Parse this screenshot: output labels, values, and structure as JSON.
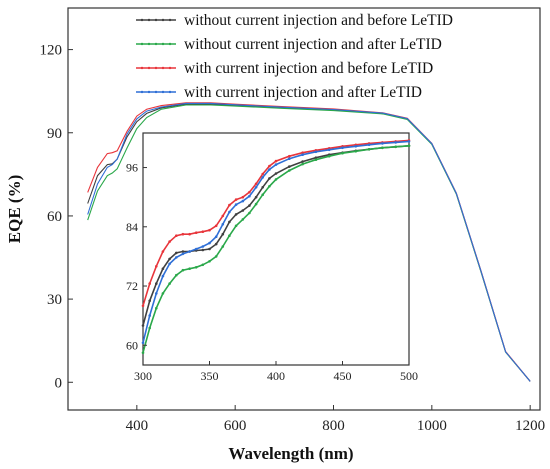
{
  "chart_data": [
    {
      "type": "line",
      "title": "",
      "xlabel": "Wavelength  (nm)",
      "ylabel": "EQE  (%)",
      "xlim": [
        260,
        1220
      ],
      "ylim": [
        -10,
        135
      ],
      "xticks": [
        400,
        600,
        800,
        1000,
        1200
      ],
      "yticks": [
        0,
        30,
        60,
        90,
        120
      ],
      "grid": false,
      "legend_position": "top-right",
      "series": [
        {
          "name": "without current injection and before LeTID",
          "color": "#404040",
          "x": [
            300,
            320,
            340,
            350,
            360,
            380,
            400,
            420,
            450,
            500,
            550,
            600,
            700,
            800,
            900,
            950,
            1000,
            1050,
            1100,
            1150,
            1200
          ],
          "y": [
            64.5,
            74.5,
            78.5,
            78.8,
            80.5,
            88.5,
            94.0,
            97.0,
            99.0,
            100.3,
            100.3,
            99.8,
            99.0,
            98.3,
            97.0,
            95.0,
            86.0,
            68.0,
            40.0,
            11.0,
            0.3
          ]
        },
        {
          "name": "without current injection and after LeTID",
          "color": "#2aa84a",
          "x": [
            300,
            320,
            340,
            350,
            360,
            380,
            400,
            420,
            450,
            500,
            550,
            600,
            700,
            800,
            900,
            950,
            1000,
            1050,
            1100,
            1150,
            1200
          ],
          "y": [
            58.5,
            69.0,
            74.5,
            75.5,
            77.0,
            84.5,
            91.5,
            95.5,
            98.5,
            100.0,
            100.0,
            99.6,
            98.8,
            98.0,
            96.8,
            94.8,
            85.8,
            67.8,
            39.8,
            10.9,
            0.3
          ]
        },
        {
          "name": "with current injection and before LeTID",
          "color": "#e8353b",
          "x": [
            300,
            320,
            340,
            350,
            360,
            380,
            400,
            420,
            450,
            500,
            550,
            600,
            700,
            800,
            900,
            950,
            1000,
            1050,
            1100,
            1150,
            1200
          ],
          "y": [
            68.5,
            77.5,
            82.5,
            82.8,
            83.5,
            90.5,
            96.0,
            98.5,
            99.8,
            100.8,
            100.8,
            100.3,
            99.4,
            98.6,
            97.2,
            95.2,
            86.2,
            68.2,
            40.2,
            11.1,
            0.3
          ]
        },
        {
          "name": "with current injection and after LeTID",
          "color": "#2f6fd6",
          "x": [
            300,
            320,
            340,
            350,
            360,
            380,
            400,
            420,
            450,
            500,
            550,
            600,
            700,
            800,
            900,
            950,
            1000,
            1050,
            1100,
            1150,
            1200
          ],
          "y": [
            60.5,
            71.5,
            77.5,
            78.5,
            80.5,
            89.5,
            95.0,
            97.8,
            99.3,
            100.6,
            100.6,
            100.1,
            99.2,
            98.4,
            97.1,
            95.1,
            86.1,
            68.1,
            40.1,
            11.0,
            0.3
          ]
        }
      ]
    },
    {
      "type": "line",
      "title": "",
      "xlabel": "",
      "ylabel": "",
      "xlim": [
        300,
        500
      ],
      "ylim": [
        56,
        103
      ],
      "xticks": [
        300,
        350,
        400,
        450,
        500
      ],
      "yticks": [
        60,
        72,
        84,
        96
      ],
      "grid": false,
      "series": [
        {
          "color": "#404040",
          "x": [
            300,
            305,
            310,
            315,
            320,
            325,
            330,
            335,
            340,
            345,
            350,
            355,
            360,
            365,
            370,
            375,
            380,
            385,
            390,
            395,
            400,
            410,
            420,
            430,
            440,
            450,
            460,
            470,
            480,
            490,
            500
          ],
          "y": [
            64.0,
            69.0,
            72.5,
            75.5,
            77.5,
            78.7,
            79.0,
            79.0,
            79.2,
            79.3,
            79.5,
            80.5,
            82.5,
            85.0,
            86.5,
            87.3,
            88.3,
            90.0,
            92.0,
            93.8,
            94.8,
            96.2,
            97.2,
            98.0,
            98.6,
            99.0,
            99.4,
            99.7,
            100.0,
            100.2,
            100.4
          ]
        },
        {
          "color": "#2aa84a",
          "x": [
            300,
            305,
            310,
            315,
            320,
            325,
            330,
            335,
            340,
            345,
            350,
            355,
            360,
            365,
            370,
            375,
            380,
            385,
            390,
            395,
            400,
            410,
            420,
            430,
            440,
            450,
            460,
            470,
            480,
            490,
            500
          ],
          "y": [
            58.5,
            63.5,
            67.5,
            70.5,
            72.5,
            74.2,
            75.2,
            75.5,
            75.8,
            76.3,
            77.0,
            78.0,
            80.0,
            82.2,
            84.2,
            85.5,
            86.8,
            88.6,
            90.5,
            92.2,
            93.6,
            95.4,
            96.7,
            97.6,
            98.3,
            98.9,
            99.3,
            99.7,
            100.0,
            100.2,
            100.4
          ]
        },
        {
          "color": "#e8353b",
          "x": [
            300,
            305,
            310,
            315,
            320,
            325,
            330,
            335,
            340,
            345,
            350,
            355,
            360,
            365,
            370,
            375,
            380,
            385,
            390,
            395,
            400,
            410,
            420,
            430,
            440,
            450,
            460,
            470,
            480,
            490,
            500
          ],
          "y": [
            68.0,
            72.5,
            76.0,
            79.0,
            81.0,
            82.2,
            82.5,
            82.5,
            82.8,
            83.0,
            83.3,
            84.2,
            86.2,
            88.4,
            89.5,
            90.0,
            91.0,
            92.7,
            94.7,
            96.3,
            97.3,
            98.3,
            99.0,
            99.5,
            99.9,
            100.3,
            100.6,
            100.9,
            101.1,
            101.3,
            101.5
          ]
        },
        {
          "color": "#2f6fd6",
          "x": [
            300,
            305,
            310,
            315,
            320,
            325,
            330,
            335,
            340,
            345,
            350,
            355,
            360,
            365,
            370,
            375,
            380,
            385,
            390,
            395,
            400,
            410,
            420,
            430,
            440,
            450,
            460,
            470,
            480,
            490,
            500
          ],
          "y": [
            60.5,
            66.0,
            70.5,
            74.0,
            76.5,
            77.8,
            78.5,
            79.0,
            79.5,
            80.0,
            80.7,
            82.0,
            84.5,
            87.0,
            88.5,
            89.2,
            90.2,
            92.0,
            94.0,
            95.6,
            96.6,
            97.8,
            98.6,
            99.2,
            99.6,
            100.0,
            100.3,
            100.6,
            100.9,
            101.1,
            101.3
          ]
        }
      ]
    }
  ]
}
